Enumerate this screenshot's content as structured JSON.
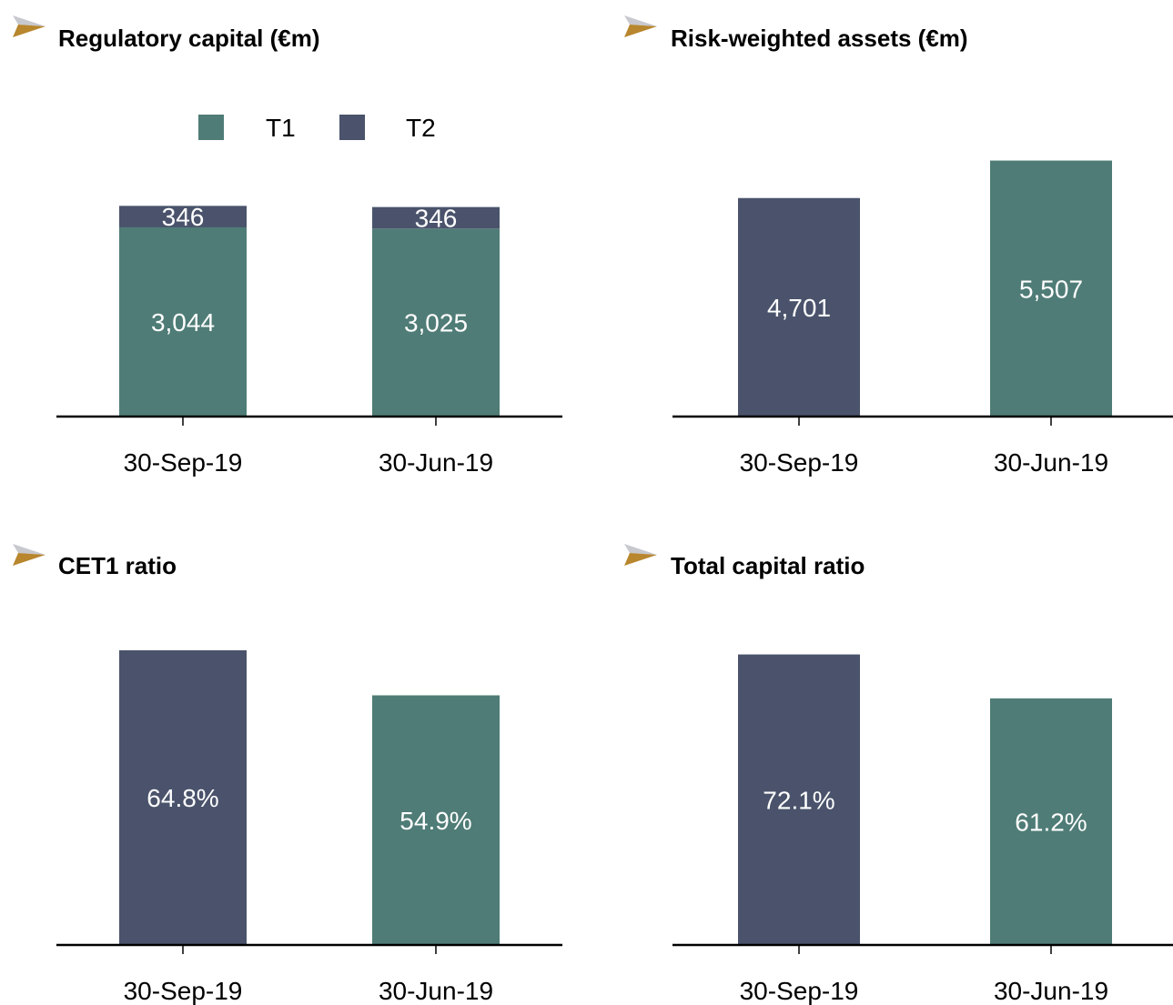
{
  "colors": {
    "teal": "#4f7c76",
    "navy": "#4a536b",
    "gold": "#b8862d",
    "axis": "#000000",
    "label_inside": "#ffffff"
  },
  "panels": [
    {
      "title": "Regulatory capital (€m)",
      "icon": "arrow-bullet-icon"
    },
    {
      "title": "Risk-weighted assets (€m)",
      "icon": "arrow-bullet-icon"
    },
    {
      "title": "CET1 ratio",
      "icon": "arrow-bullet-icon"
    },
    {
      "title": "Total capital ratio",
      "icon": "arrow-bullet-icon"
    }
  ],
  "chart_data": [
    {
      "type": "bar",
      "stacked": true,
      "title": "Regulatory capital (€m)",
      "categories": [
        "30-Sep-19",
        "30-Jun-19"
      ],
      "series": [
        {
          "name": "T1",
          "values": [
            3044,
            3025
          ],
          "labels": [
            "3,044",
            "3,025"
          ],
          "color": "#4f7c76"
        },
        {
          "name": "T2",
          "values": [
            346,
            346
          ],
          "labels": [
            "346",
            "346"
          ],
          "color": "#4a536b"
        }
      ],
      "legend": "top-center",
      "ylim": [
        0,
        4390
      ],
      "grid": false
    },
    {
      "type": "bar",
      "title": "Risk-weighted assets (€m)",
      "categories": [
        "30-Sep-19",
        "30-Jun-19"
      ],
      "values": [
        4701,
        5507
      ],
      "labels": [
        "4,701",
        "5,507"
      ],
      "bar_colors": [
        "#4a536b",
        "#4f7c76"
      ],
      "ylim": [
        0,
        5870
      ],
      "grid": false
    },
    {
      "type": "bar",
      "title": "CET1 ratio",
      "categories": [
        "30-Sep-19",
        "30-Jun-19"
      ],
      "values": [
        64.8,
        54.9
      ],
      "labels": [
        "64.8%",
        "54.9%"
      ],
      "bar_colors": [
        "#4a536b",
        "#4f7c76"
      ],
      "ylim": [
        0,
        70
      ],
      "grid": false
    },
    {
      "type": "bar",
      "title": "Total capital ratio",
      "categories": [
        "30-Sep-19",
        "30-Jun-19"
      ],
      "values": [
        72.1,
        61.2
      ],
      "labels": [
        "72.1%",
        "61.2%"
      ],
      "bar_colors": [
        "#4a536b",
        "#4f7c76"
      ],
      "ylim": [
        0,
        79
      ],
      "grid": false
    }
  ]
}
